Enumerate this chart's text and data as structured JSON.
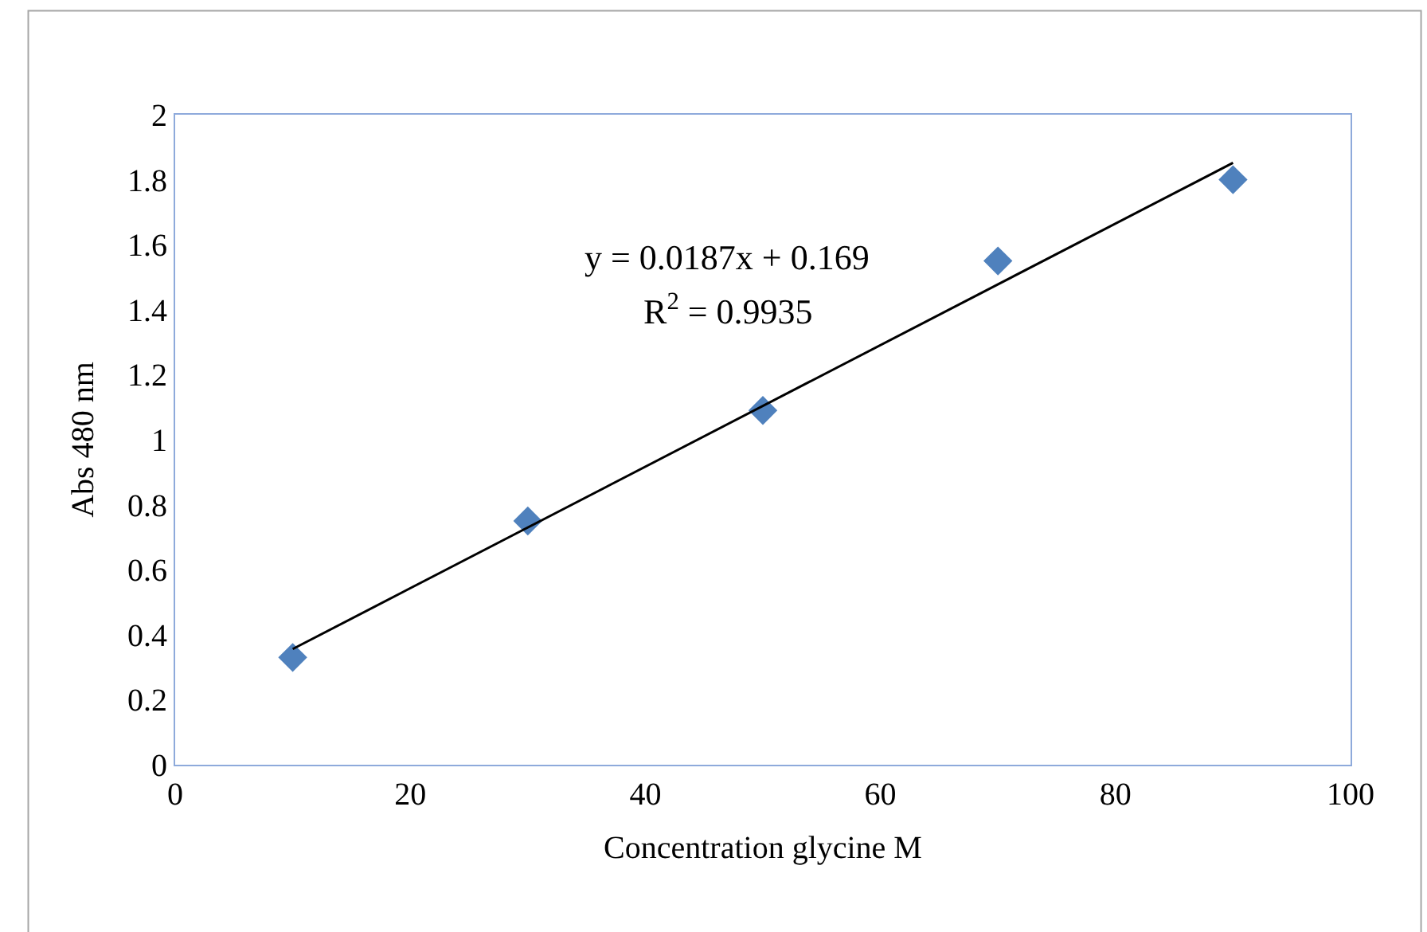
{
  "chart_data": {
    "type": "scatter",
    "xlabel": "Concentration glycine M",
    "ylabel": "Abs 480 nm",
    "x": [
      10,
      30,
      50,
      70,
      90
    ],
    "series": [
      {
        "color": "#4f81bd",
        "marker": "diamond",
        "values": [
          0.33,
          0.75,
          1.09,
          1.55,
          1.8
        ]
      },
      {
        "type": "line",
        "color": "#000000",
        "marker": "none",
        "x": [
          10,
          90
        ],
        "values": [
          0.356,
          1.852
        ]
      }
    ],
    "annotations": [
      "y = 0.0187x + 0.169",
      "R$^{2}$ = 0.9935"
    ],
    "xlim": [
      0,
      100
    ],
    "xticks": [
      0,
      20,
      40,
      60,
      80,
      100
    ],
    "ylim": [
      0,
      2
    ],
    "yticks": [
      0,
      0.2,
      0.4,
      0.6,
      0.8,
      1,
      1.2,
      1.4,
      1.6,
      1.8,
      2
    ],
    "legend": false
  }
}
